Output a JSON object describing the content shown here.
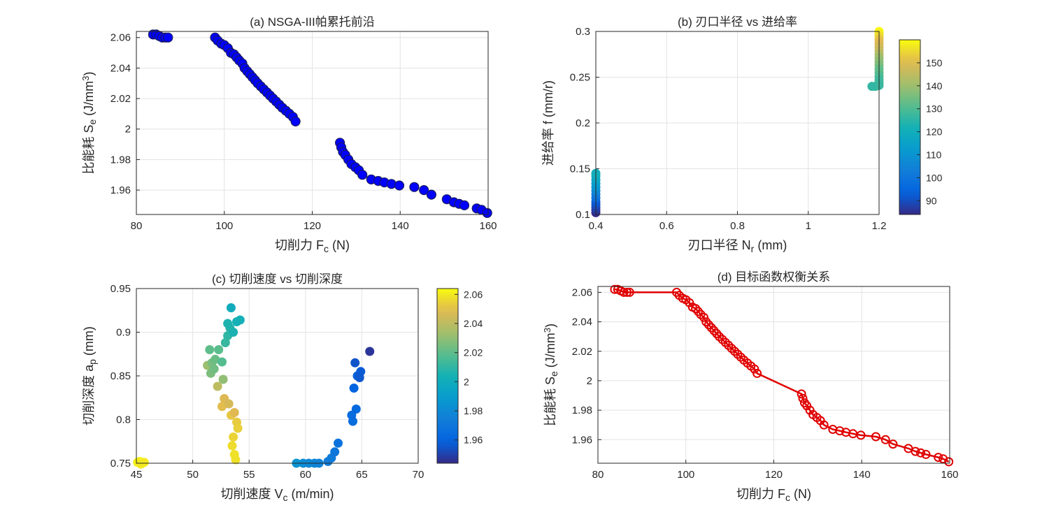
{
  "chart_data": [
    {
      "id": "a",
      "type": "scatter",
      "title": "(a) NSGA-III帕累托前沿",
      "xlabel": {
        "main": "切削力 F",
        "sub": "c",
        "tail": " (N)"
      },
      "ylabel": {
        "main": "比能耗 S",
        "sub": "e",
        "tail": " (J/mm",
        "sup": "3",
        "end": ")"
      },
      "xlim": [
        80,
        160
      ],
      "ylim": [
        1.944,
        2.064
      ],
      "xticks": [
        80,
        100,
        120,
        140,
        160
      ],
      "xtick_labels": [
        "80",
        "100",
        "120",
        "140",
        "160"
      ],
      "yticks": [
        1.96,
        1.98,
        2.0,
        2.02,
        2.04,
        2.06
      ],
      "ytick_labels": [
        "1.96",
        "1.98",
        "2",
        "2.02",
        "2.04",
        "2.06"
      ],
      "grid": true,
      "marker_color": "#0000ff",
      "marker_edge": "#1a1a60",
      "points": [
        [
          83.8,
          2.062
        ],
        [
          84.5,
          2.062
        ],
        [
          85.2,
          2.061
        ],
        [
          85.9,
          2.06
        ],
        [
          86.6,
          2.06
        ],
        [
          87.2,
          2.06
        ],
        [
          97.9,
          2.06
        ],
        [
          98.5,
          2.058
        ],
        [
          99.3,
          2.056
        ],
        [
          100.0,
          2.055
        ],
        [
          100.8,
          2.053
        ],
        [
          101.5,
          2.05
        ],
        [
          102.2,
          2.049
        ],
        [
          102.8,
          2.047
        ],
        [
          103.4,
          2.045
        ],
        [
          104.1,
          2.043
        ],
        [
          104.6,
          2.04
        ],
        [
          105.2,
          2.038
        ],
        [
          105.8,
          2.036
        ],
        [
          106.4,
          2.034
        ],
        [
          107.0,
          2.032
        ],
        [
          107.6,
          2.03
        ],
        [
          108.3,
          2.028
        ],
        [
          109.0,
          2.026
        ],
        [
          109.7,
          2.024
        ],
        [
          110.4,
          2.022
        ],
        [
          111.1,
          2.02
        ],
        [
          111.8,
          2.018
        ],
        [
          112.5,
          2.016
        ],
        [
          113.2,
          2.014
        ],
        [
          114.0,
          2.012
        ],
        [
          114.8,
          2.01
        ],
        [
          115.6,
          2.008
        ],
        [
          116.2,
          2.005
        ],
        [
          126.3,
          1.991
        ],
        [
          126.6,
          1.988
        ],
        [
          127.0,
          1.985
        ],
        [
          127.5,
          1.983
        ],
        [
          128.2,
          1.98
        ],
        [
          128.9,
          1.977
        ],
        [
          129.8,
          1.975
        ],
        [
          130.6,
          1.973
        ],
        [
          131.4,
          1.97
        ],
        [
          133.4,
          1.967
        ],
        [
          135.0,
          1.966
        ],
        [
          136.4,
          1.965
        ],
        [
          138.0,
          1.964
        ],
        [
          139.8,
          1.963
        ],
        [
          143.2,
          1.962
        ],
        [
          145.4,
          1.96
        ],
        [
          147.1,
          1.957
        ],
        [
          150.6,
          1.954
        ],
        [
          152.2,
          1.952
        ],
        [
          153.4,
          1.951
        ],
        [
          154.6,
          1.95
        ],
        [
          157.4,
          1.948
        ],
        [
          158.5,
          1.947
        ],
        [
          159.8,
          1.945
        ]
      ]
    },
    {
      "id": "b",
      "type": "scatter",
      "title": "(b) 刃口半径 vs 进给率",
      "xlabel": {
        "main": "刃口半径 N",
        "sub": "r",
        "tail": " (mm)"
      },
      "ylabel": {
        "main": "进给率 f (mm/r)"
      },
      "xlim": [
        0.4,
        1.2
      ],
      "ylim": [
        0.1,
        0.3
      ],
      "xticks": [
        0.4,
        0.6,
        0.8,
        1.0,
        1.2
      ],
      "xtick_labels": [
        "0.4",
        "0.6",
        "0.8",
        "1",
        "1.2"
      ],
      "yticks": [
        0.1,
        0.15,
        0.2,
        0.25,
        0.3
      ],
      "ytick_labels": [
        "0.1",
        "0.15",
        "0.2",
        "0.25",
        "0.3"
      ],
      "grid": true,
      "colorbar": {
        "min": 84,
        "max": 160,
        "ticks": [
          90,
          100,
          110,
          120,
          130,
          140,
          150
        ],
        "tick_labels": [
          "90",
          "100",
          "110",
          "120",
          "130",
          "140",
          "150"
        ]
      },
      "points": [
        [
          0.4,
          0.102,
          84
        ],
        [
          0.4,
          0.105,
          86
        ],
        [
          0.4,
          0.108,
          88
        ],
        [
          0.4,
          0.111,
          90
        ],
        [
          0.4,
          0.114,
          92
        ],
        [
          0.4,
          0.118,
          98
        ],
        [
          0.4,
          0.122,
          102
        ],
        [
          0.4,
          0.126,
          106
        ],
        [
          0.4,
          0.13,
          110
        ],
        [
          0.4,
          0.134,
          113
        ],
        [
          0.4,
          0.138,
          116
        ],
        [
          0.4,
          0.142,
          118
        ],
        [
          0.4,
          0.145,
          120
        ],
        [
          1.2,
          0.3,
          160
        ],
        [
          1.2,
          0.298,
          158
        ],
        [
          1.2,
          0.295,
          155
        ],
        [
          1.2,
          0.291,
          152
        ],
        [
          1.2,
          0.287,
          150
        ],
        [
          1.2,
          0.283,
          148
        ],
        [
          1.2,
          0.279,
          146
        ],
        [
          1.2,
          0.275,
          143
        ],
        [
          1.2,
          0.271,
          140
        ],
        [
          1.2,
          0.267,
          138
        ],
        [
          1.2,
          0.263,
          136
        ],
        [
          1.2,
          0.259,
          133
        ],
        [
          1.2,
          0.255,
          132
        ],
        [
          1.2,
          0.251,
          130
        ],
        [
          1.2,
          0.247,
          128
        ],
        [
          1.2,
          0.244,
          128
        ],
        [
          1.2,
          0.241,
          127
        ],
        [
          1.19,
          0.24,
          127
        ],
        [
          1.18,
          0.24,
          126
        ]
      ]
    },
    {
      "id": "c",
      "type": "scatter",
      "title": "(c) 切削速度 vs 切削深度",
      "xlabel": {
        "main": "切削速度 V",
        "sub": "c",
        "tail": " (m/min)"
      },
      "ylabel": {
        "main": "切削深度 a",
        "sub": "p",
        "tail": " (mm)"
      },
      "xlim": [
        45,
        70
      ],
      "ylim": [
        0.75,
        0.95
      ],
      "xticks": [
        45,
        50,
        55,
        60,
        65,
        70
      ],
      "xtick_labels": [
        "45",
        "50",
        "55",
        "60",
        "65",
        "70"
      ],
      "yticks": [
        0.75,
        0.8,
        0.85,
        0.9,
        0.95
      ],
      "ytick_labels": [
        "0.75",
        "0.8",
        "0.85",
        "0.9",
        "0.95"
      ],
      "grid": true,
      "colorbar": {
        "min": 1.944,
        "max": 2.064,
        "ticks": [
          1.96,
          1.98,
          2.0,
          2.02,
          2.04,
          2.06
        ],
        "tick_labels": [
          "1.96",
          "1.98",
          "2",
          "2.02",
          "2.04",
          "2.06"
        ]
      },
      "points": [
        [
          45.1,
          0.751,
          2.062
        ],
        [
          45.3,
          0.752,
          2.062
        ],
        [
          45.5,
          0.75,
          2.061
        ],
        [
          45.7,
          0.751,
          2.06
        ],
        [
          45.4,
          0.749,
          2.06
        ],
        [
          51.5,
          0.88,
          2.02
        ],
        [
          51.3,
          0.862,
          2.032
        ],
        [
          51.7,
          0.865,
          2.025
        ],
        [
          52.0,
          0.869,
          2.022
        ],
        [
          52.3,
          0.88,
          2.019
        ],
        [
          52.6,
          0.866,
          2.018
        ],
        [
          51.6,
          0.853,
          2.026
        ],
        [
          51.9,
          0.858,
          2.024
        ],
        [
          52.2,
          0.838,
          2.04
        ],
        [
          52.7,
          0.846,
          2.03
        ],
        [
          52.9,
          0.888,
          2.012
        ],
        [
          53.1,
          0.896,
          2.01
        ],
        [
          53.3,
          0.905,
          2.008
        ],
        [
          53.1,
          0.91,
          2.006
        ],
        [
          53.6,
          0.9,
          2.005
        ],
        [
          53.9,
          0.912,
          2.004
        ],
        [
          54.2,
          0.914,
          2.003
        ],
        [
          53.4,
          0.928,
          2.0
        ],
        [
          52.8,
          0.824,
          2.048
        ],
        [
          52.6,
          0.815,
          2.05
        ],
        [
          53.2,
          0.818,
          2.046
        ],
        [
          53.4,
          0.805,
          2.052
        ],
        [
          53.7,
          0.808,
          2.049
        ],
        [
          53.9,
          0.797,
          2.053
        ],
        [
          54.0,
          0.79,
          2.054
        ],
        [
          53.6,
          0.78,
          2.055
        ],
        [
          53.5,
          0.77,
          2.057
        ],
        [
          53.7,
          0.76,
          2.058
        ],
        [
          53.8,
          0.754,
          2.058
        ],
        [
          59.2,
          0.75,
          1.985
        ],
        [
          59.8,
          0.75,
          1.982
        ],
        [
          60.3,
          0.75,
          1.98
        ],
        [
          60.8,
          0.75,
          1.978
        ],
        [
          61.2,
          0.75,
          1.977
        ],
        [
          62.0,
          0.752,
          1.974
        ],
        [
          62.3,
          0.756,
          1.972
        ],
        [
          62.6,
          0.763,
          1.97
        ],
        [
          62.9,
          0.773,
          1.968
        ],
        [
          64.2,
          0.798,
          1.965
        ],
        [
          64.1,
          0.805,
          1.964
        ],
        [
          64.5,
          0.812,
          1.963
        ],
        [
          64.3,
          0.836,
          1.96
        ],
        [
          64.6,
          0.85,
          1.958
        ],
        [
          64.9,
          0.855,
          1.957
        ],
        [
          64.8,
          0.848,
          1.956
        ],
        [
          64.4,
          0.865,
          1.955
        ],
        [
          65.7,
          0.878,
          1.947
        ]
      ]
    },
    {
      "id": "d",
      "type": "line",
      "title": "(d) 目标函数权衡关系",
      "xlabel": {
        "main": "切削力 F",
        "sub": "c",
        "tail": " (N)"
      },
      "ylabel": {
        "main": "比能耗 S",
        "sub": "e",
        "tail": " (J/mm",
        "sup": "3",
        "end": ")"
      },
      "xlim": [
        80,
        160
      ],
      "ylim": [
        1.944,
        2.064
      ],
      "xticks": [
        80,
        100,
        120,
        140,
        160
      ],
      "xtick_labels": [
        "80",
        "100",
        "120",
        "140",
        "160"
      ],
      "yticks": [
        1.96,
        1.98,
        2.0,
        2.02,
        2.04,
        2.06
      ],
      "ytick_labels": [
        "1.96",
        "1.98",
        "2",
        "2.02",
        "2.04",
        "2.06"
      ],
      "grid": true,
      "line_color": "#e00000",
      "points": [
        [
          83.8,
          2.062
        ],
        [
          84.5,
          2.062
        ],
        [
          85.2,
          2.061
        ],
        [
          85.9,
          2.06
        ],
        [
          86.6,
          2.06
        ],
        [
          87.2,
          2.06
        ],
        [
          97.9,
          2.06
        ],
        [
          98.5,
          2.058
        ],
        [
          99.3,
          2.056
        ],
        [
          100.0,
          2.055
        ],
        [
          100.8,
          2.053
        ],
        [
          101.5,
          2.05
        ],
        [
          102.2,
          2.049
        ],
        [
          102.8,
          2.047
        ],
        [
          103.4,
          2.045
        ],
        [
          104.1,
          2.043
        ],
        [
          104.6,
          2.04
        ],
        [
          105.2,
          2.038
        ],
        [
          105.8,
          2.036
        ],
        [
          106.4,
          2.034
        ],
        [
          107.0,
          2.032
        ],
        [
          107.6,
          2.03
        ],
        [
          108.3,
          2.028
        ],
        [
          109.0,
          2.026
        ],
        [
          109.7,
          2.024
        ],
        [
          110.4,
          2.022
        ],
        [
          111.1,
          2.02
        ],
        [
          111.8,
          2.018
        ],
        [
          112.5,
          2.016
        ],
        [
          113.2,
          2.014
        ],
        [
          114.0,
          2.012
        ],
        [
          114.8,
          2.01
        ],
        [
          115.6,
          2.008
        ],
        [
          116.2,
          2.005
        ],
        [
          126.3,
          1.991
        ],
        [
          126.6,
          1.988
        ],
        [
          127.0,
          1.985
        ],
        [
          127.5,
          1.983
        ],
        [
          128.2,
          1.98
        ],
        [
          128.9,
          1.977
        ],
        [
          129.8,
          1.975
        ],
        [
          130.6,
          1.973
        ],
        [
          131.4,
          1.97
        ],
        [
          133.4,
          1.967
        ],
        [
          135.0,
          1.966
        ],
        [
          136.4,
          1.965
        ],
        [
          138.0,
          1.964
        ],
        [
          139.8,
          1.963
        ],
        [
          143.2,
          1.962
        ],
        [
          145.4,
          1.96
        ],
        [
          147.1,
          1.957
        ],
        [
          150.6,
          1.954
        ],
        [
          152.2,
          1.952
        ],
        [
          153.4,
          1.951
        ],
        [
          154.6,
          1.95
        ],
        [
          157.4,
          1.948
        ],
        [
          158.5,
          1.947
        ],
        [
          159.8,
          1.945
        ]
      ]
    }
  ]
}
